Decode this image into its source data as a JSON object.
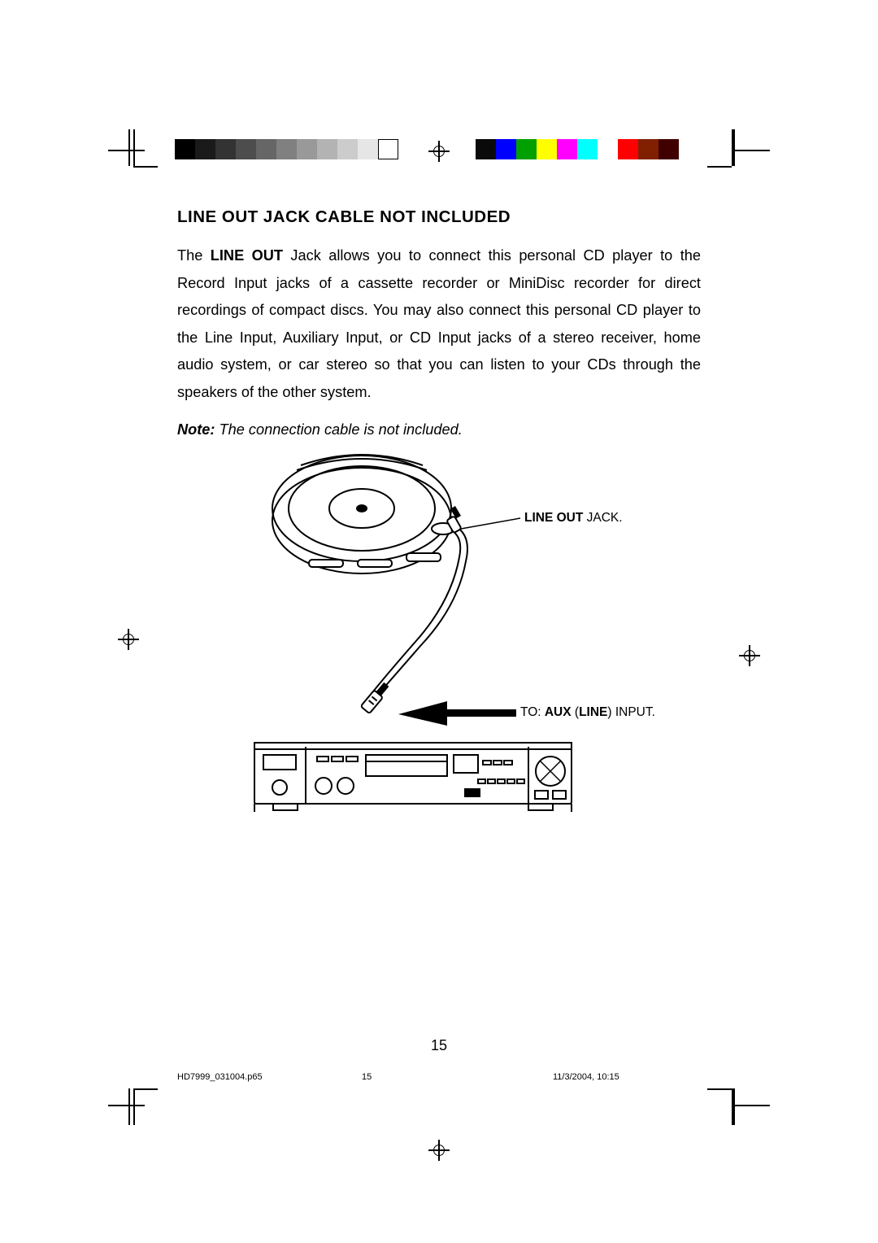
{
  "title": "LINE OUT JACK  CABLE NOT INCLUDED",
  "body_pre": "The ",
  "body_bold": "LINE OUT",
  "body_post": " Jack allows you to connect this personal CD player to the Record Input jacks of a cassette recorder or MiniDisc recorder for direct recordings of compact discs. You may also connect this personal CD player to the Line Input, Auxiliary Input, or CD Input jacks of a stereo receiver, home audio system, or car stereo so that you can listen to your CDs through the speakers of the other system.",
  "note_bold": "Note:",
  "note_rest": " The connection cable is not included.",
  "label1_bold": "LINE OUT",
  "label1_rest": " JACK.",
  "label2_pre": "TO: ",
  "label2_b1": "AUX",
  "label2_mid": " (",
  "label2_b2": "LINE",
  "label2_post": ") INPUT.",
  "page_number": "15",
  "footer_file": "HD7999_031004.p65",
  "footer_page": "15",
  "footer_date": "11/3/2004, 10:15",
  "gray_steps": [
    "#000000",
    "#1a1a1a",
    "#333333",
    "#4d4d4d",
    "#666666",
    "#808080",
    "#999999",
    "#b3b3b3",
    "#cccccc",
    "#e6e6e6"
  ],
  "color_steps": [
    "#0a0a0a",
    "#0000ff",
    "#00a000",
    "#ffff00",
    "#ff00ff",
    "#00ffff",
    "#ffffff",
    "#ff0000",
    "#802000",
    "#400000"
  ]
}
